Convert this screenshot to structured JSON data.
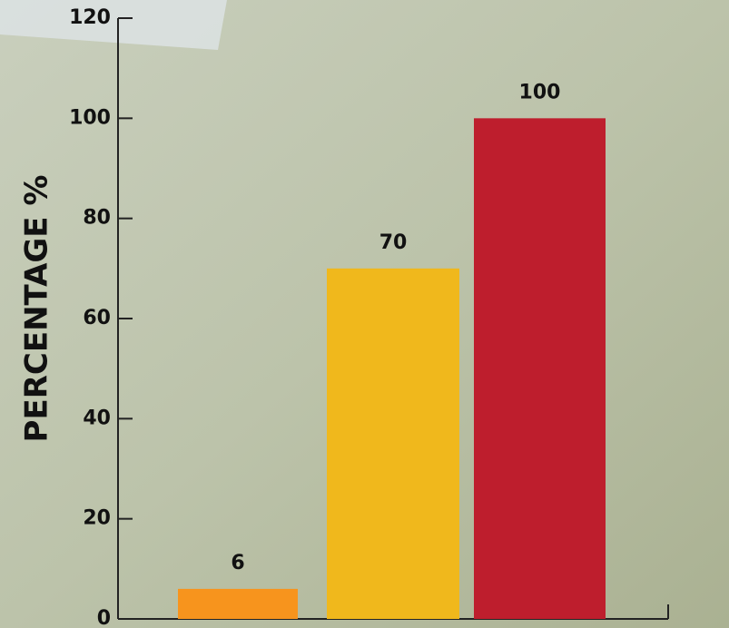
{
  "chart_data": {
    "type": "bar",
    "y_label": "PERCENTAGE %",
    "values": [
      6,
      70,
      100
    ],
    "colors": [
      "#f7941d",
      "#f0b81c",
      "#be1e2d"
    ],
    "ylim": [
      0,
      120
    ],
    "yticks": [
      0,
      20,
      40,
      60,
      80,
      100,
      120
    ]
  }
}
